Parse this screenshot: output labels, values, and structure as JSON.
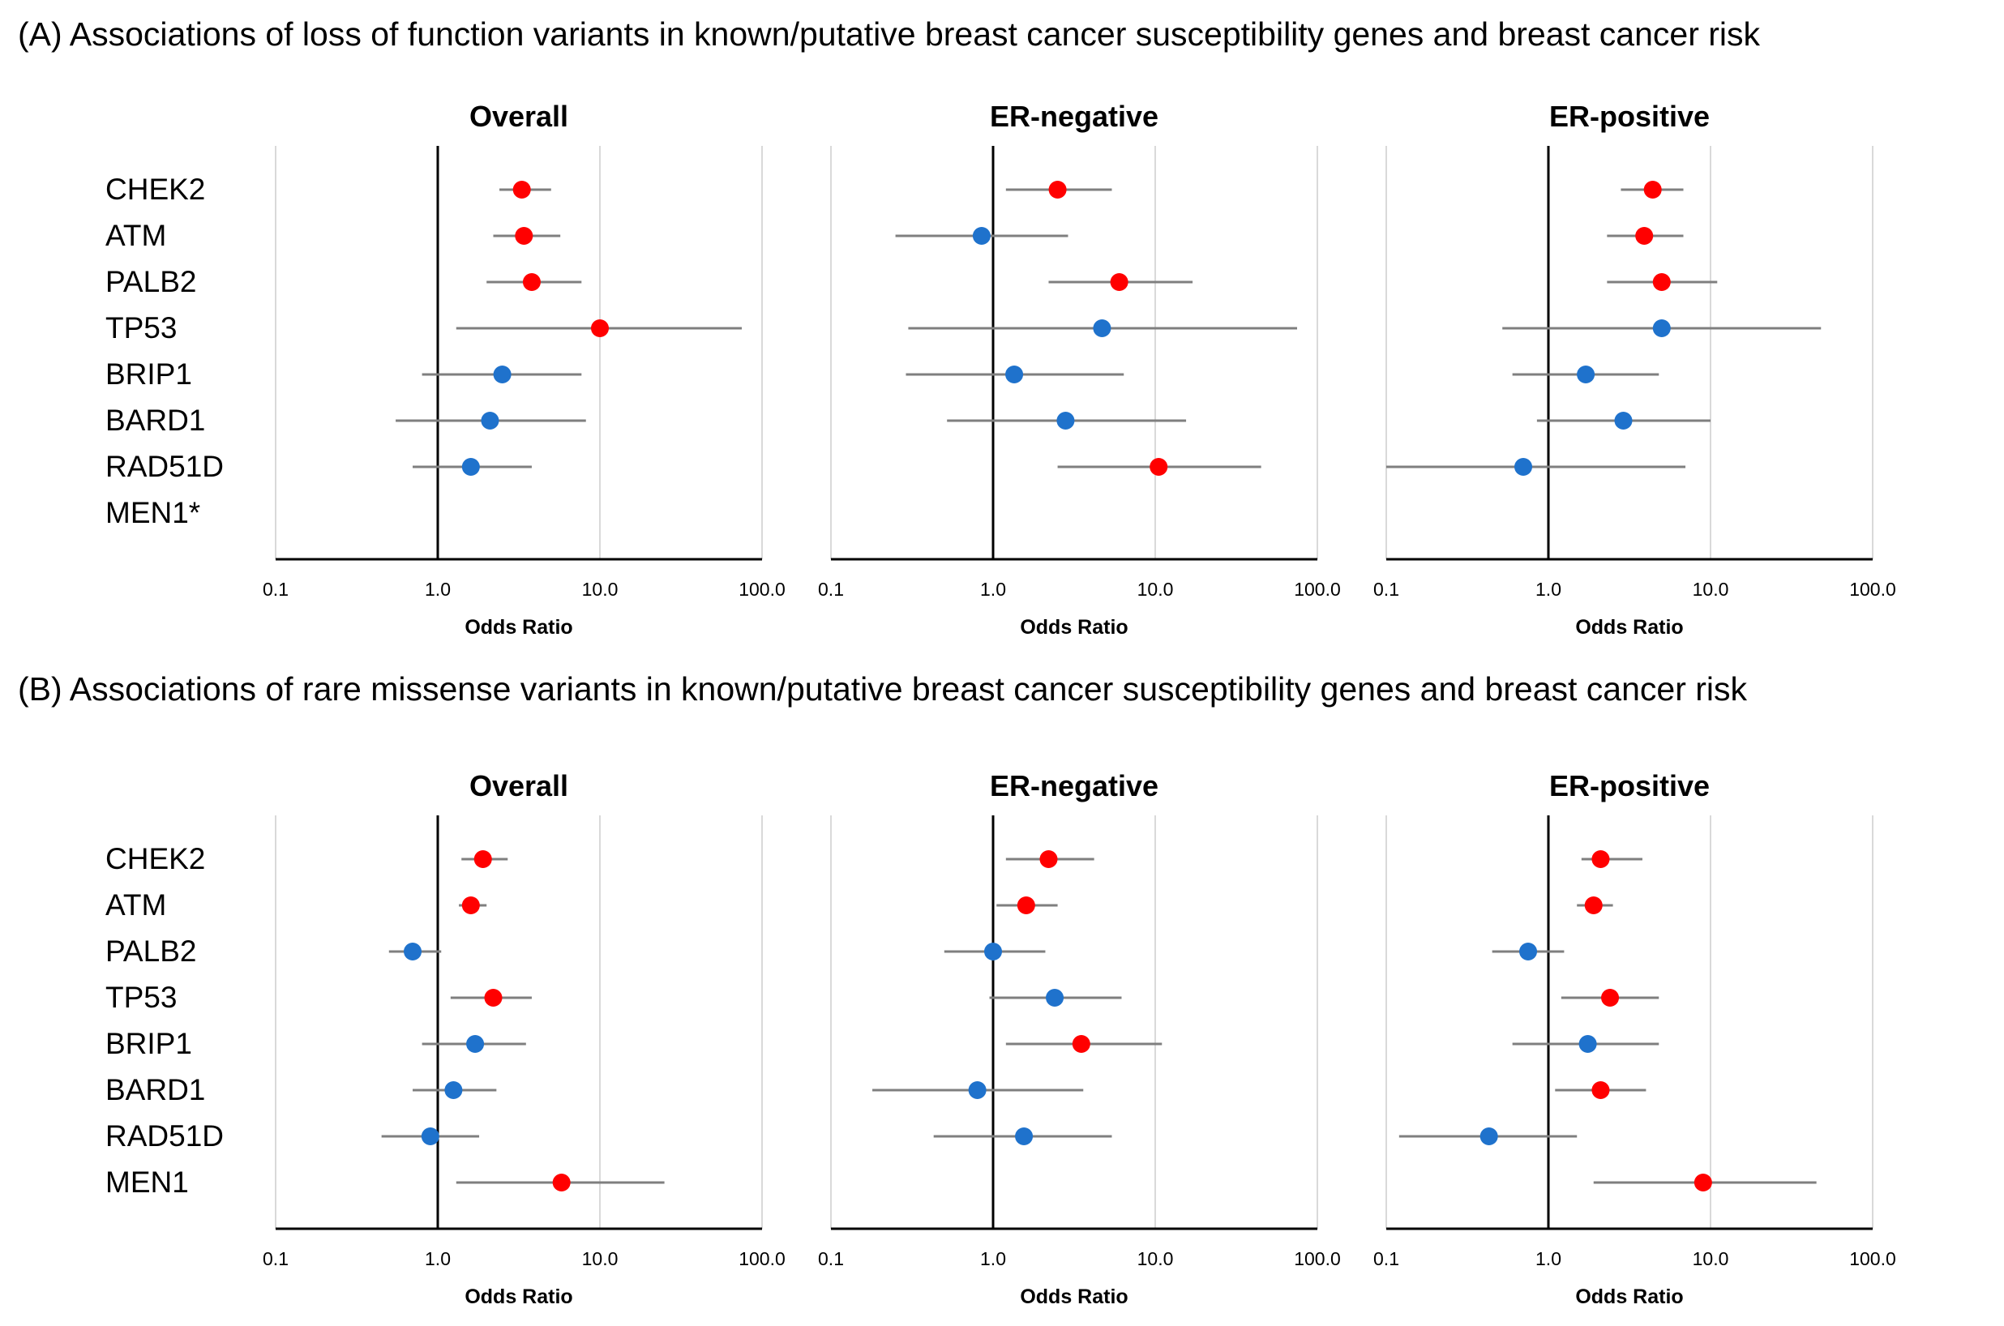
{
  "section_a": {
    "title": "(A) Associations of loss of function variants in known/putative breast cancer susceptibility genes and breast cancer risk"
  },
  "section_b": {
    "title": "(B) Associations of rare missense variants in known/putative breast cancer susceptibility genes and breast cancer risk"
  },
  "colors": {
    "significant": "#ff0000",
    "nonsignificant": "#1f72cc",
    "ci_line": "#7f7f7f",
    "grid": "#d9d9d9",
    "axis": "#000000"
  },
  "chart_data": [
    {
      "type": "scatter",
      "scale": "log",
      "section": "A",
      "title": "Overall",
      "xlabel": "Odds Ratio",
      "xlim": [
        0.1,
        100.0
      ],
      "xticks": [
        "0.1",
        "1.0",
        "10.0",
        "100.0"
      ],
      "genes": [
        "CHEK2",
        "ATM",
        "PALB2",
        "TP53",
        "BRIP1",
        "BARD1",
        "RAD51D",
        "MEN1*"
      ],
      "points": [
        {
          "gene": "CHEK2",
          "or": 3.3,
          "lo": 2.4,
          "hi": 5.0,
          "significant": true
        },
        {
          "gene": "ATM",
          "or": 3.4,
          "lo": 2.2,
          "hi": 5.7,
          "significant": true
        },
        {
          "gene": "PALB2",
          "or": 3.8,
          "lo": 2.0,
          "hi": 7.7,
          "significant": true
        },
        {
          "gene": "TP53",
          "or": 10.0,
          "lo": 1.3,
          "hi": 75.0,
          "significant": true
        },
        {
          "gene": "BRIP1",
          "or": 2.5,
          "lo": 0.8,
          "hi": 7.7,
          "significant": false
        },
        {
          "gene": "BARD1",
          "or": 2.1,
          "lo": 0.55,
          "hi": 8.2,
          "significant": false
        },
        {
          "gene": "RAD51D",
          "or": 1.6,
          "lo": 0.7,
          "hi": 3.8,
          "significant": false
        }
      ]
    },
    {
      "type": "scatter",
      "scale": "log",
      "section": "A",
      "title": "ER-negative",
      "xlabel": "Odds Ratio",
      "xlim": [
        0.1,
        100.0
      ],
      "xticks": [
        "0.1",
        "1.0",
        "10.0",
        "100.0"
      ],
      "genes": [
        "CHEK2",
        "ATM",
        "PALB2",
        "TP53",
        "BRIP1",
        "BARD1",
        "RAD51D",
        "MEN1*"
      ],
      "points": [
        {
          "gene": "CHEK2",
          "or": 2.5,
          "lo": 1.2,
          "hi": 5.4,
          "significant": true
        },
        {
          "gene": "ATM",
          "or": 0.85,
          "lo": 0.25,
          "hi": 2.9,
          "significant": false
        },
        {
          "gene": "PALB2",
          "or": 6.0,
          "lo": 2.2,
          "hi": 17.0,
          "significant": true
        },
        {
          "gene": "TP53",
          "or": 4.7,
          "lo": 0.3,
          "hi": 75.0,
          "significant": false
        },
        {
          "gene": "BRIP1",
          "or": 1.35,
          "lo": 0.29,
          "hi": 6.4,
          "significant": false
        },
        {
          "gene": "BARD1",
          "or": 2.8,
          "lo": 0.52,
          "hi": 15.5,
          "significant": false
        },
        {
          "gene": "RAD51D",
          "or": 10.5,
          "lo": 2.5,
          "hi": 45.0,
          "significant": true
        }
      ]
    },
    {
      "type": "scatter",
      "scale": "log",
      "section": "A",
      "title": "ER-positive",
      "xlabel": "Odds Ratio",
      "xlim": [
        0.1,
        100.0
      ],
      "xticks": [
        "0.1",
        "1.0",
        "10.0",
        "100.0"
      ],
      "genes": [
        "CHEK2",
        "ATM",
        "PALB2",
        "TP53",
        "BRIP1",
        "BARD1",
        "RAD51D",
        "MEN1*"
      ],
      "points": [
        {
          "gene": "CHEK2",
          "or": 4.4,
          "lo": 2.8,
          "hi": 6.8,
          "significant": true
        },
        {
          "gene": "ATM",
          "or": 3.9,
          "lo": 2.3,
          "hi": 6.8,
          "significant": true
        },
        {
          "gene": "PALB2",
          "or": 5.0,
          "lo": 2.3,
          "hi": 11.0,
          "significant": true
        },
        {
          "gene": "TP53",
          "or": 5.0,
          "lo": 0.52,
          "hi": 48.0,
          "significant": false
        },
        {
          "gene": "BRIP1",
          "or": 1.7,
          "lo": 0.6,
          "hi": 4.8,
          "significant": false
        },
        {
          "gene": "BARD1",
          "or": 2.9,
          "lo": 0.85,
          "hi": 10.0,
          "significant": false
        },
        {
          "gene": "RAD51D",
          "or": 0.7,
          "lo": 0.1,
          "hi": 7.0,
          "significant": false
        }
      ]
    },
    {
      "type": "scatter",
      "scale": "log",
      "section": "B",
      "title": "Overall",
      "xlabel": "Odds Ratio",
      "xlim": [
        0.1,
        100.0
      ],
      "xticks": [
        "0.1",
        "1.0",
        "10.0",
        "100.0"
      ],
      "genes": [
        "CHEK2",
        "ATM",
        "PALB2",
        "TP53",
        "BRIP1",
        "BARD1",
        "RAD51D",
        "MEN1"
      ],
      "points": [
        {
          "gene": "CHEK2",
          "or": 1.9,
          "lo": 1.4,
          "hi": 2.7,
          "significant": true
        },
        {
          "gene": "ATM",
          "or": 1.6,
          "lo": 1.35,
          "hi": 2.0,
          "significant": true
        },
        {
          "gene": "PALB2",
          "or": 0.7,
          "lo": 0.5,
          "hi": 1.05,
          "significant": false
        },
        {
          "gene": "TP53",
          "or": 2.2,
          "lo": 1.2,
          "hi": 3.8,
          "significant": true
        },
        {
          "gene": "BRIP1",
          "or": 1.7,
          "lo": 0.8,
          "hi": 3.5,
          "significant": false
        },
        {
          "gene": "BARD1",
          "or": 1.25,
          "lo": 0.7,
          "hi": 2.3,
          "significant": false
        },
        {
          "gene": "RAD51D",
          "or": 0.9,
          "lo": 0.45,
          "hi": 1.8,
          "significant": false
        },
        {
          "gene": "MEN1",
          "or": 5.8,
          "lo": 1.3,
          "hi": 25.0,
          "significant": true
        }
      ]
    },
    {
      "type": "scatter",
      "scale": "log",
      "section": "B",
      "title": "ER-negative",
      "xlabel": "Odds Ratio",
      "xlim": [
        0.1,
        100.0
      ],
      "xticks": [
        "0.1",
        "1.0",
        "10.0",
        "100.0"
      ],
      "genes": [
        "CHEK2",
        "ATM",
        "PALB2",
        "TP53",
        "BRIP1",
        "BARD1",
        "RAD51D",
        "MEN1"
      ],
      "points": [
        {
          "gene": "CHEK2",
          "or": 2.2,
          "lo": 1.2,
          "hi": 4.2,
          "significant": true
        },
        {
          "gene": "ATM",
          "or": 1.6,
          "lo": 1.05,
          "hi": 2.5,
          "significant": true
        },
        {
          "gene": "PALB2",
          "or": 1.0,
          "lo": 0.5,
          "hi": 2.1,
          "significant": false
        },
        {
          "gene": "TP53",
          "or": 2.4,
          "lo": 0.95,
          "hi": 6.2,
          "significant": false
        },
        {
          "gene": "BRIP1",
          "or": 3.5,
          "lo": 1.2,
          "hi": 11.0,
          "significant": true
        },
        {
          "gene": "BARD1",
          "or": 0.8,
          "lo": 0.18,
          "hi": 3.6,
          "significant": false
        },
        {
          "gene": "RAD51D",
          "or": 1.55,
          "lo": 0.43,
          "hi": 5.4,
          "significant": false
        },
        {
          "gene": "MEN1",
          "or": null,
          "lo": null,
          "hi": null,
          "significant": false
        }
      ]
    },
    {
      "type": "scatter",
      "scale": "log",
      "section": "B",
      "title": "ER-positive",
      "xlabel": "Odds Ratio",
      "xlim": [
        0.1,
        100.0
      ],
      "xticks": [
        "0.1",
        "1.0",
        "10.0",
        "100.0"
      ],
      "genes": [
        "CHEK2",
        "ATM",
        "PALB2",
        "TP53",
        "BRIP1",
        "BARD1",
        "RAD51D",
        "MEN1"
      ],
      "points": [
        {
          "gene": "CHEK2",
          "or": 2.1,
          "lo": 1.6,
          "hi": 3.8,
          "significant": true
        },
        {
          "gene": "ATM",
          "or": 1.9,
          "lo": 1.5,
          "hi": 2.5,
          "significant": true
        },
        {
          "gene": "PALB2",
          "or": 0.75,
          "lo": 0.45,
          "hi": 1.25,
          "significant": false
        },
        {
          "gene": "TP53",
          "or": 2.4,
          "lo": 1.2,
          "hi": 4.8,
          "significant": true
        },
        {
          "gene": "BRIP1",
          "or": 1.75,
          "lo": 0.6,
          "hi": 4.8,
          "significant": false
        },
        {
          "gene": "BARD1",
          "or": 2.1,
          "lo": 1.1,
          "hi": 4.0,
          "significant": true
        },
        {
          "gene": "RAD51D",
          "or": 0.43,
          "lo": 0.12,
          "hi": 1.5,
          "significant": false
        },
        {
          "gene": "MEN1",
          "or": 9.0,
          "lo": 1.9,
          "hi": 45.0,
          "significant": true
        }
      ]
    }
  ]
}
